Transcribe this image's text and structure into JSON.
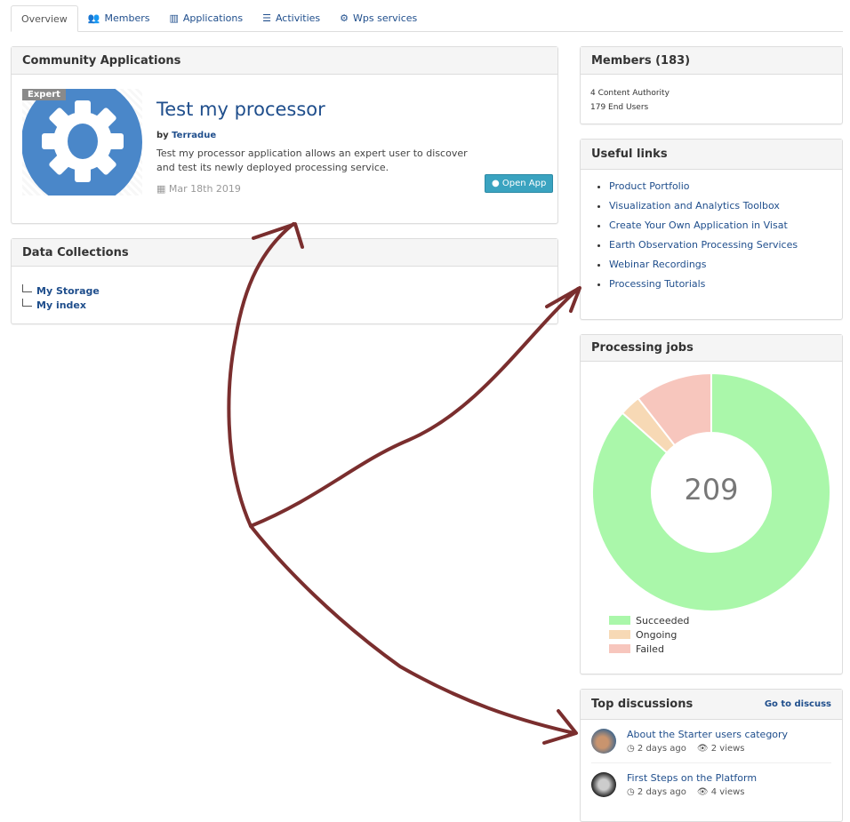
{
  "tabs": [
    {
      "label": "Overview",
      "icon": "home"
    },
    {
      "label": "Members",
      "icon": "users-icon"
    },
    {
      "label": "Applications",
      "icon": "map-icon"
    },
    {
      "label": "Activities",
      "icon": "list-icon"
    },
    {
      "label": "Wps services",
      "icon": "gear-icon"
    }
  ],
  "community_apps": {
    "title": "Community Applications",
    "badge": "Expert",
    "app_title": "Test my processor",
    "by": "by",
    "author": "Terradue",
    "description": "Test my processor application allows an expert user to discover and test its newly deployed processing service.",
    "date": "Mar 18th 2019",
    "open_label": "Open App"
  },
  "data_collections": {
    "title": "Data Collections",
    "items": [
      "My Storage",
      "My index"
    ]
  },
  "members": {
    "title": "Members (183)",
    "lines": [
      "4 Content Authority",
      "179 End Users"
    ]
  },
  "useful_links": {
    "title": "Useful links",
    "items": [
      "Product Portfolio",
      "Visualization and Analytics Toolbox",
      "Create Your Own Application in Visat",
      "Earth Observation Processing Services",
      "Webinar Recordings",
      "Processing Tutorials"
    ]
  },
  "processing_jobs": {
    "title": "Processing jobs",
    "total": "209"
  },
  "chart_data": {
    "type": "pie",
    "donut": true,
    "center_label": "209",
    "categories": [
      "Succeeded",
      "Ongoing",
      "Failed"
    ],
    "values": [
      181,
      6,
      22
    ],
    "colors": [
      "#aaf7aa",
      "#f7d9b5",
      "#f7c6bd"
    ],
    "legend": "bottom-left"
  },
  "top_discussions": {
    "title": "Top discussions",
    "go_label": "Go to discuss",
    "items": [
      {
        "title": "About the Starter users category",
        "time": "2 days ago",
        "views": "2 views"
      },
      {
        "title": "First Steps on the Platform",
        "time": "2 days ago",
        "views": "4 views"
      }
    ]
  }
}
